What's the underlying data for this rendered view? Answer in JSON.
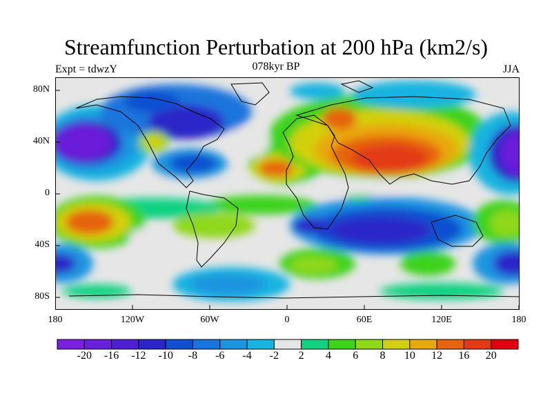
{
  "header": {
    "title": "Streamfunction Perturbation at 200 hPa (km2/s)",
    "left_label": "Expt = tdwzY",
    "center_label": "078kyr BP",
    "right_label": "JJA"
  },
  "map": {
    "lat_labels": [
      "80N",
      "40N",
      "0",
      "40S",
      "80S"
    ],
    "lon_labels": [
      "180",
      "120W",
      "60W",
      "0",
      "60E",
      "120E",
      "180"
    ],
    "ocean_background": "#e6e6e6"
  },
  "colorbar": {
    "colors": [
      "#7b1fe0",
      "#6a1fd8",
      "#4f1fd0",
      "#2a25c8",
      "#1050d0",
      "#1a74dc",
      "#1e94e0",
      "#18b4e0",
      "#e6e6e6",
      "#10d282",
      "#3cd31a",
      "#90d81a",
      "#d2d010",
      "#e8a810",
      "#e66410",
      "#e23a12",
      "#e00010"
    ],
    "labels": [
      "-20",
      "-16",
      "-12",
      "-10",
      "-8",
      "-6",
      "-4",
      "-2",
      "2",
      "4",
      "6",
      "8",
      "10",
      "12",
      "16",
      "20"
    ]
  }
}
